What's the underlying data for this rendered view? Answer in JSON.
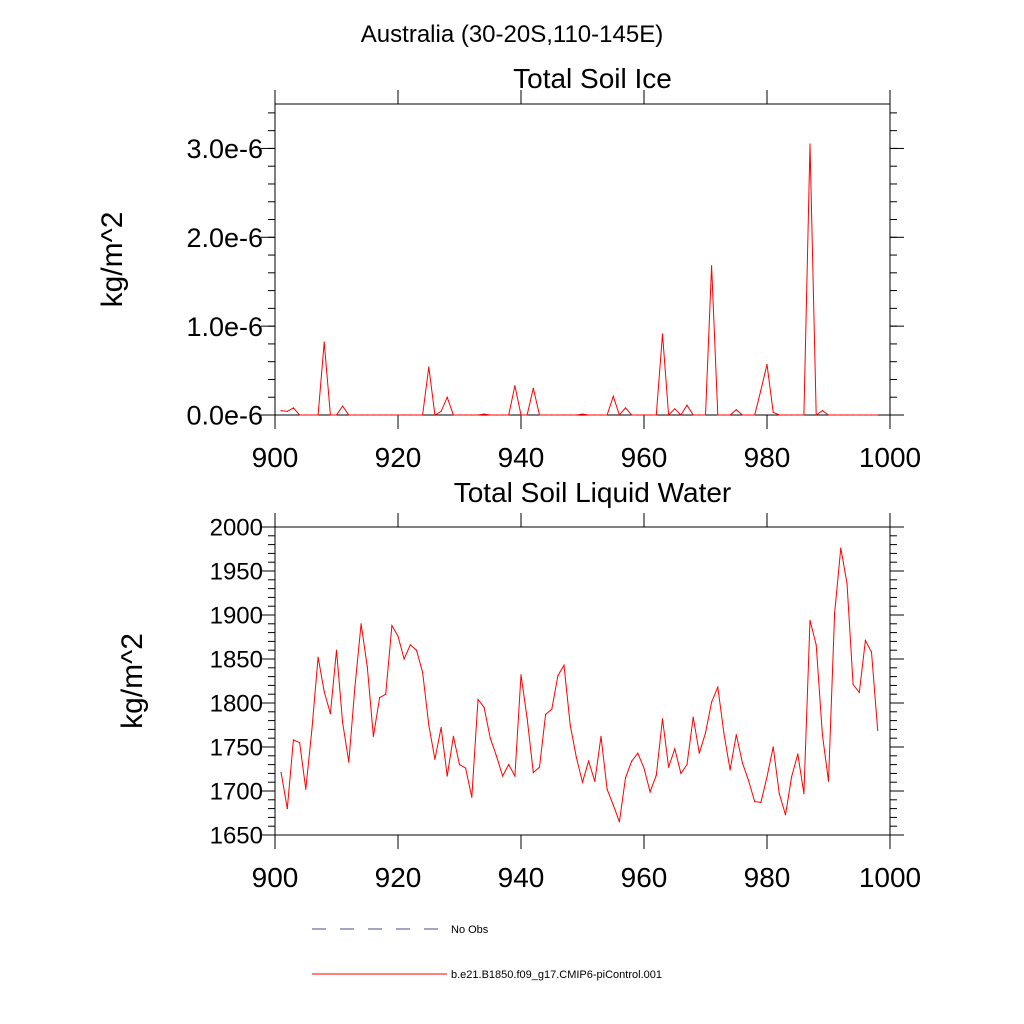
{
  "page_title": "Australia (30-20S,110-145E)",
  "chart_data": [
    {
      "type": "line",
      "title": "Total Soil Ice",
      "xlabel": "",
      "ylabel": "kg/m^2",
      "xlim": [
        900,
        1000
      ],
      "ylim": [
        0,
        3.5e-06
      ],
      "x_ticks": [
        900,
        920,
        940,
        960,
        980,
        1000
      ],
      "x_tick_labels": [
        "900",
        "920",
        "940",
        "960",
        "980",
        "1000"
      ],
      "y_ticks": [
        0,
        1e-06,
        2e-06,
        3e-06
      ],
      "y_tick_labels": [
        "0.0e-6",
        "1.0e-6",
        "2.0e-6",
        "3.0e-6"
      ],
      "grid": false,
      "series": [
        {
          "name": "b.e21.B1850.f09_g17.CMIP6-piControl.001",
          "color": "#ff0000",
          "x": [
            901,
            902,
            903,
            904,
            905,
            906,
            907,
            908,
            909,
            910,
            911,
            912,
            913,
            914,
            915,
            916,
            917,
            918,
            919,
            920,
            921,
            922,
            923,
            924,
            925,
            926,
            927,
            928,
            929,
            930,
            931,
            932,
            933,
            934,
            935,
            936,
            937,
            938,
            939,
            940,
            941,
            942,
            943,
            944,
            945,
            946,
            947,
            948,
            949,
            950,
            951,
            952,
            953,
            954,
            955,
            956,
            957,
            958,
            959,
            960,
            961,
            962,
            963,
            964,
            965,
            966,
            967,
            968,
            969,
            970,
            971,
            972,
            973,
            974,
            975,
            976,
            977,
            978,
            979,
            980,
            981,
            982,
            983,
            984,
            985,
            986,
            987,
            988,
            989,
            990,
            991,
            992,
            993,
            994,
            995,
            996,
            997,
            998
          ],
          "values": [
            5e-08,
            4e-08,
            8e-08,
            0,
            0,
            0,
            0,
            8.2e-07,
            0,
            0,
            1e-07,
            0,
            0,
            0,
            0,
            0,
            0,
            0,
            0,
            0,
            0,
            0,
            0,
            0,
            5.4e-07,
            0,
            4e-08,
            2e-07,
            0,
            0,
            0,
            0,
            0,
            1e-08,
            0,
            0,
            0,
            0,
            3.3e-07,
            0,
            0,
            3e-07,
            0,
            0,
            0,
            0,
            0,
            0,
            0,
            1e-08,
            0,
            0,
            0,
            0,
            2.1e-07,
            0,
            8e-08,
            0,
            0,
            0,
            0,
            0,
            9.1e-07,
            0,
            7e-08,
            0,
            1.1e-07,
            0,
            0,
            0,
            1.68e-06,
            0,
            0,
            0,
            6e-08,
            0,
            0,
            0,
            2.8e-07,
            5.7e-07,
            3e-08,
            0,
            0,
            0,
            0,
            0,
            3.05e-06,
            0,
            5e-08,
            0,
            0,
            0,
            0,
            0,
            0,
            0,
            0,
            0
          ]
        }
      ]
    },
    {
      "type": "line",
      "title": "Total Soil Liquid Water",
      "xlabel": "",
      "ylabel": "kg/m^2",
      "xlim": [
        900,
        1000
      ],
      "ylim": [
        1650,
        2000
      ],
      "x_ticks": [
        900,
        920,
        940,
        960,
        980,
        1000
      ],
      "x_tick_labels": [
        "900",
        "920",
        "940",
        "960",
        "980",
        "1000"
      ],
      "y_ticks": [
        1650,
        1700,
        1750,
        1800,
        1850,
        1900,
        1950,
        2000
      ],
      "y_tick_labels": [
        "1650",
        "1700",
        "1750",
        "1800",
        "1850",
        "1900",
        "1950",
        "2000"
      ],
      "grid": false,
      "series": [
        {
          "name": "b.e21.B1850.f09_g17.CMIP6-piControl.001",
          "color": "#ff0000",
          "x": [
            901,
            902,
            903,
            904,
            905,
            906,
            907,
            908,
            909,
            910,
            911,
            912,
            913,
            914,
            915,
            916,
            917,
            918,
            919,
            920,
            921,
            922,
            923,
            924,
            925,
            926,
            927,
            928,
            929,
            930,
            931,
            932,
            933,
            934,
            935,
            936,
            937,
            938,
            939,
            940,
            941,
            942,
            943,
            944,
            945,
            946,
            947,
            948,
            949,
            950,
            951,
            952,
            953,
            954,
            955,
            956,
            957,
            958,
            959,
            960,
            961,
            962,
            963,
            964,
            965,
            966,
            967,
            968,
            969,
            970,
            971,
            972,
            973,
            974,
            975,
            976,
            977,
            978,
            979,
            980,
            981,
            982,
            983,
            984,
            985,
            986,
            987,
            988,
            989,
            990,
            991,
            992,
            993,
            994,
            995,
            996,
            997,
            998
          ],
          "values": [
            1721,
            1680,
            1758,
            1755,
            1702,
            1770,
            1852,
            1813,
            1788,
            1860,
            1778,
            1733,
            1818,
            1890,
            1841,
            1762,
            1806,
            1810,
            1888,
            1876,
            1850,
            1866,
            1860,
            1835,
            1775,
            1736,
            1772,
            1717,
            1762,
            1730,
            1726,
            1693,
            1804,
            1795,
            1760,
            1740,
            1717,
            1730,
            1717,
            1832,
            1783,
            1721,
            1727,
            1787,
            1793,
            1831,
            1843,
            1775,
            1738,
            1710,
            1734,
            1711,
            1762,
            1702,
            1684,
            1665,
            1715,
            1734,
            1743,
            1726,
            1699,
            1718,
            1782,
            1727,
            1748,
            1720,
            1730,
            1784,
            1743,
            1766,
            1801,
            1818,
            1765,
            1724,
            1764,
            1732,
            1712,
            1688,
            1687,
            1716,
            1750,
            1697,
            1673,
            1716,
            1742,
            1697,
            1894,
            1866,
            1764,
            1711,
            1902,
            1976,
            1936,
            1821,
            1812,
            1871,
            1858,
            1769
          ]
        }
      ]
    }
  ],
  "legend": {
    "items": [
      {
        "label": "No Obs",
        "color": "#4a4a8a",
        "style": "dashed"
      },
      {
        "label": "b.e21.B1850.f09_g17.CMIP6-piControl.001",
        "color": "#ff0000",
        "style": "solid"
      }
    ]
  }
}
